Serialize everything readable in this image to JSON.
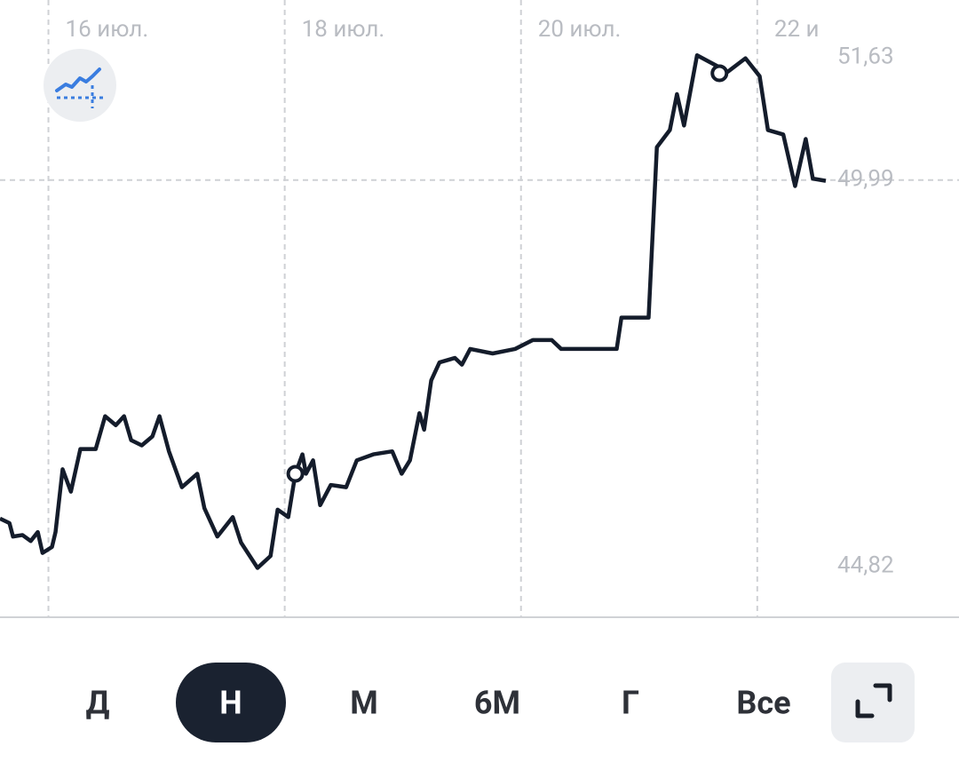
{
  "chart_data": {
    "type": "line",
    "x": [
      15.59,
      15.67,
      15.7,
      15.78,
      15.85,
      15.91,
      15.95,
      16.03,
      16.06,
      16.12,
      16.19,
      16.27,
      16.4,
      16.48,
      16.57,
      16.64,
      16.7,
      16.79,
      16.88,
      16.94,
      17.02,
      17.13,
      17.26,
      17.32,
      17.43,
      17.56,
      17.63,
      17.77,
      17.88,
      17.94,
      18.03,
      18.09,
      18.15,
      18.18,
      18.24,
      18.3,
      18.39,
      18.52,
      18.61,
      18.75,
      18.91,
      18.99,
      19.06,
      19.14,
      19.18,
      19.24,
      19.31,
      19.44,
      19.5,
      19.57,
      19.76,
      19.95,
      20.1,
      20.26,
      20.34,
      20.81,
      20.85,
      21.08,
      21.15,
      21.26,
      21.32,
      21.38,
      21.49,
      21.75,
      21.9,
      22.02,
      22.09,
      22.22,
      22.32,
      22.41,
      22.47,
      22.58
    ],
    "series": [
      {
        "color": "#141c2b",
        "values": [
          45.46,
          45.4,
          45.22,
          45.24,
          45.16,
          45.28,
          45.0,
          45.08,
          45.28,
          46.12,
          45.82,
          46.39,
          46.39,
          46.83,
          46.71,
          46.83,
          46.51,
          46.44,
          46.56,
          46.83,
          46.36,
          45.88,
          46.06,
          45.6,
          45.22,
          45.48,
          45.14,
          44.8,
          44.96,
          45.58,
          45.48,
          46.06,
          46.32,
          46.06,
          46.24,
          45.64,
          45.91,
          45.88,
          46.24,
          46.32,
          46.36,
          46.06,
          46.24,
          46.87,
          46.65,
          47.31,
          47.55,
          47.61,
          47.52,
          47.73,
          47.67,
          47.73,
          47.85,
          47.85,
          47.73,
          47.73,
          48.15,
          48.15,
          50.43,
          50.66,
          51.14,
          50.72,
          51.66,
          51.44,
          51.62,
          51.38,
          50.66,
          50.6,
          49.91,
          50.54,
          50.01,
          49.98
        ]
      }
    ],
    "markers": {
      "x": [
        18.09,
        21.68
      ],
      "values": [
        46.06,
        51.42
      ]
    },
    "xlim": [
      15.59,
      22.58
    ],
    "xticks": [
      {
        "value": 16,
        "label": "16 июл."
      },
      {
        "value": 18,
        "label": "18 июл."
      },
      {
        "value": 20,
        "label": "20 июл."
      },
      {
        "value": 22,
        "label": "22 и"
      }
    ],
    "ylim": [
      44.14,
      52.4
    ],
    "yticks": [
      {
        "value": 51.63,
        "label": "51,63"
      },
      {
        "value": 49.99,
        "label": "49,99"
      },
      {
        "value": 44.82,
        "label": "44,82"
      }
    ],
    "ygrid_tick": 1
  },
  "periods": [
    "Д",
    "Н",
    "М",
    "6М",
    "Г",
    "Все"
  ],
  "selected_period": 1
}
